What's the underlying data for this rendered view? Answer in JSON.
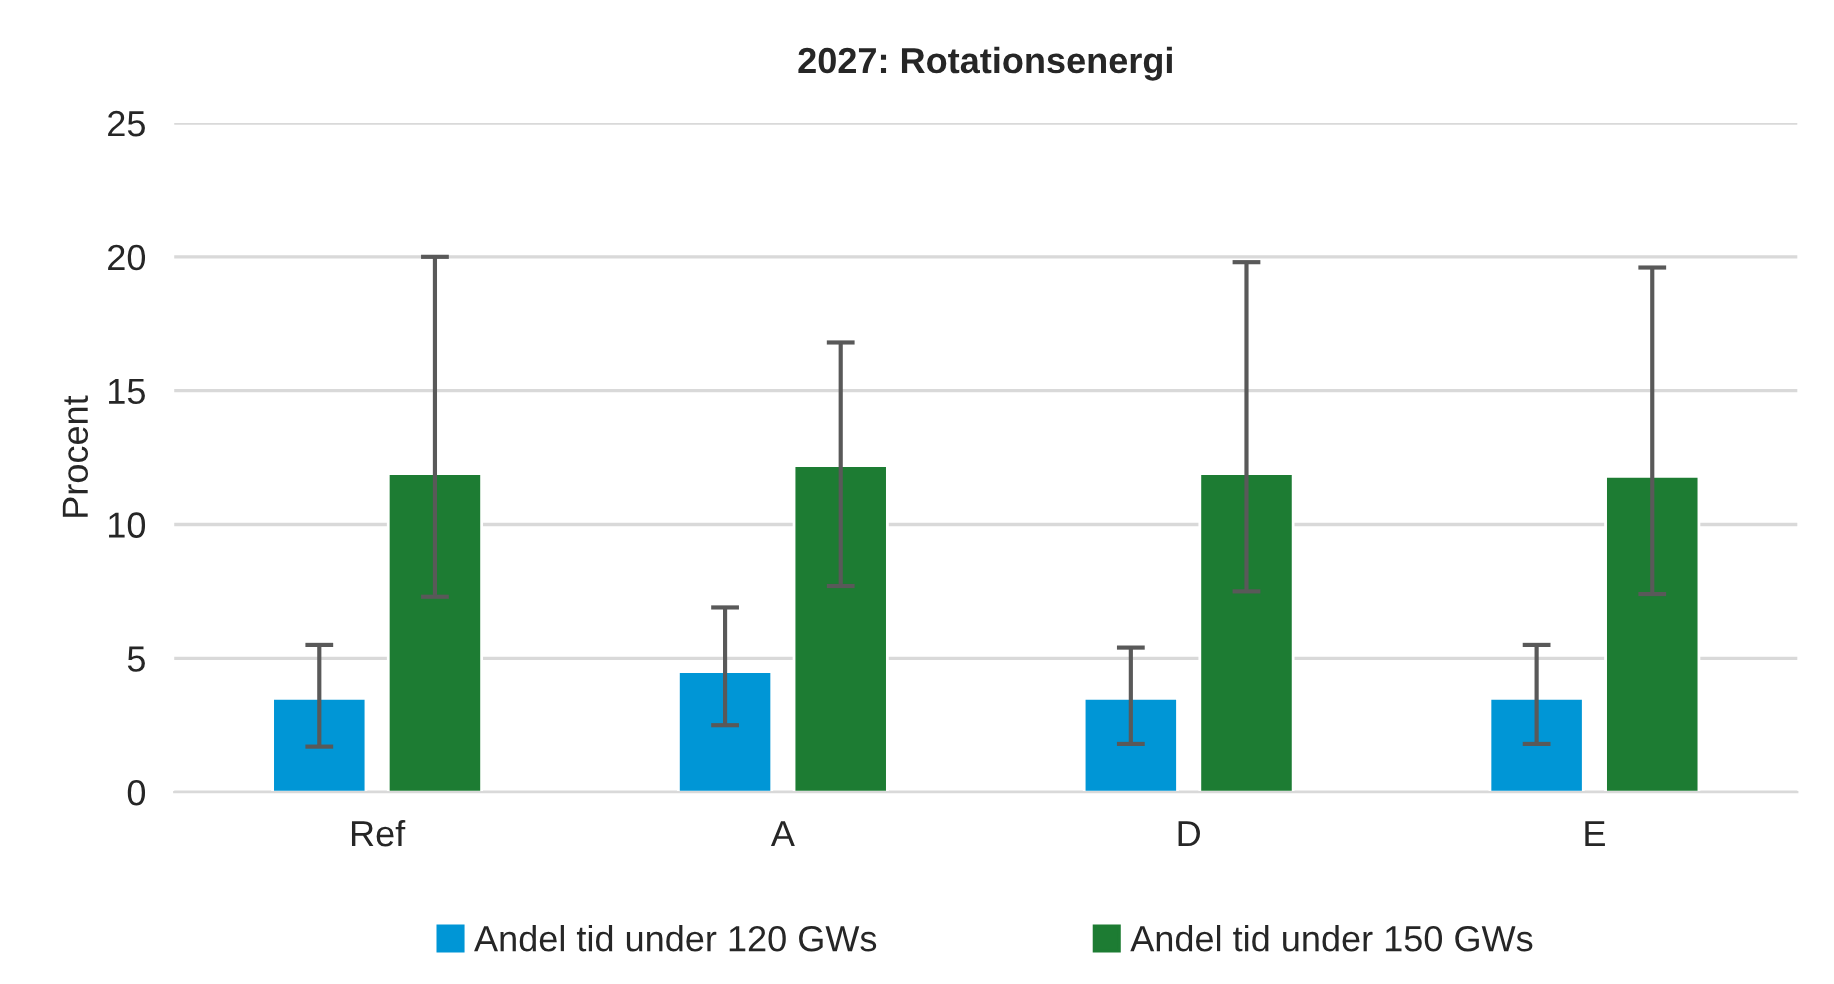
{
  "chart_data": {
    "type": "bar",
    "title": "2027: Rotationsenergi",
    "ylabel": "Procent",
    "categories": [
      "Ref",
      "A",
      "D",
      "E"
    ],
    "series": [
      {
        "name": "Andel tid under 120 GWs",
        "color": "#0096d6",
        "values": [
          3.5,
          4.5,
          3.5,
          3.5
        ],
        "errors": [
          [
            1.7,
            5.5
          ],
          [
            2.5,
            6.9
          ],
          [
            1.8,
            5.4
          ],
          [
            1.8,
            5.5
          ]
        ]
      },
      {
        "name": "Andel tid under 150 GWs",
        "color": "#1d7c33",
        "values": [
          11.9,
          12.2,
          11.9,
          11.8
        ],
        "errors": [
          [
            7.3,
            20.0
          ],
          [
            7.7,
            16.8
          ],
          [
            7.5,
            19.8
          ],
          [
            7.4,
            19.6
          ]
        ]
      }
    ],
    "ylim": [
      0,
      25
    ],
    "yticks": [
      0,
      5,
      10,
      15,
      20,
      25
    ],
    "grid": "y",
    "legend": "bottom"
  }
}
